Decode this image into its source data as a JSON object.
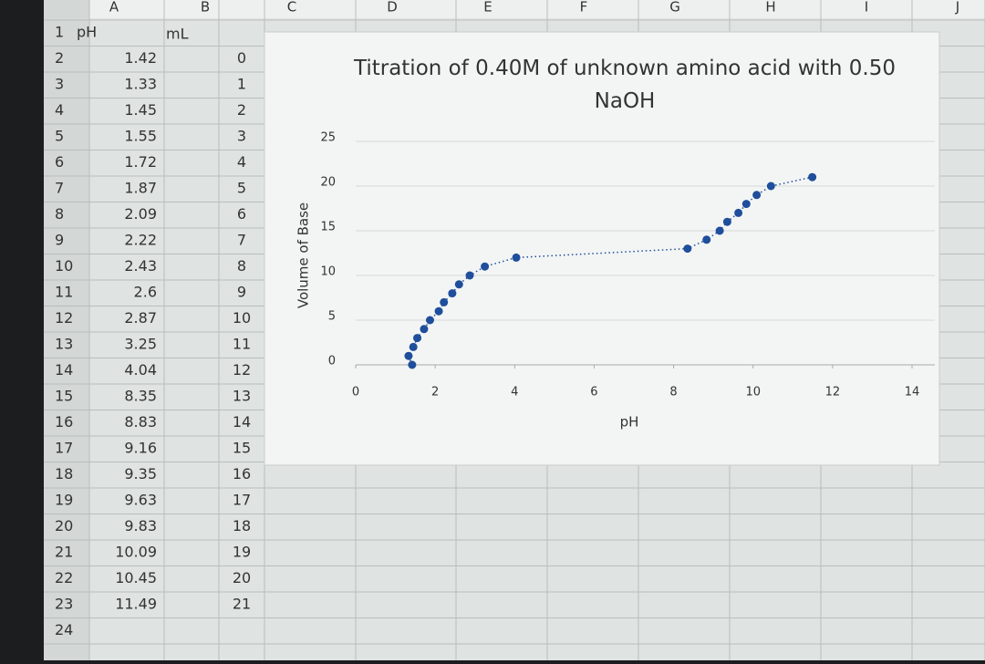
{
  "sheet": {
    "column_headers": [
      "A",
      "B",
      "C",
      "D",
      "E",
      "F",
      "G",
      "H",
      "I",
      "J"
    ],
    "row_numbers": [
      1,
      2,
      3,
      4,
      5,
      6,
      7,
      8,
      9,
      10,
      11,
      12,
      13,
      14,
      15,
      16,
      17,
      18,
      19,
      20,
      21,
      22,
      23,
      24
    ],
    "header_row": [
      "pH",
      "mL"
    ]
  },
  "chart_data": {
    "type": "scatter",
    "title": "Titration of 0.40M of unknown amino acid with 0.50 NaOH",
    "x_label": "pH",
    "y_label": "Volume of Base",
    "x": [
      1.42,
      1.33,
      1.45,
      1.55,
      1.72,
      1.87,
      2.09,
      2.22,
      2.43,
      2.6,
      2.87,
      3.25,
      4.04,
      8.35,
      8.83,
      9.16,
      9.35,
      9.63,
      9.83,
      10.09,
      10.45,
      11.49
    ],
    "series": [
      {
        "name": "mL",
        "color": "#1f4e9c",
        "values": [
          0,
          1,
          2,
          3,
          4,
          5,
          6,
          7,
          8,
          9,
          10,
          11,
          12,
          13,
          14,
          15,
          16,
          17,
          18,
          19,
          20,
          21
        ]
      }
    ],
    "xlim": [
      0,
      14
    ],
    "xticks": [
      0,
      2,
      4,
      6,
      8,
      10,
      12,
      14
    ],
    "ylim": [
      0,
      25
    ],
    "yticks": [
      0,
      5,
      10,
      15,
      20,
      25
    ],
    "grid": true,
    "line_style": "dotted"
  }
}
